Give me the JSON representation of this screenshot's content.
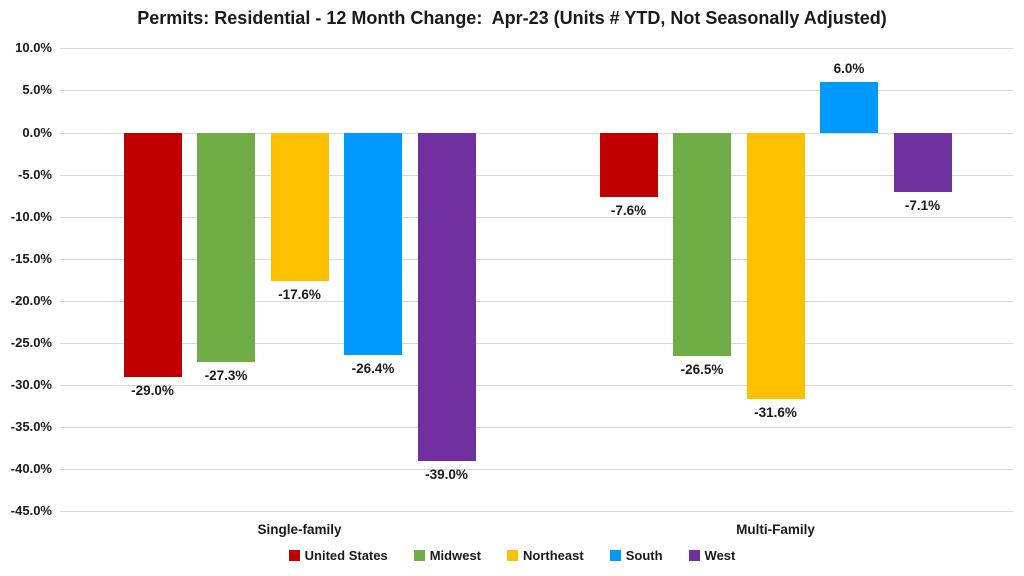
{
  "chart_data": {
    "type": "bar",
    "title": "Permits: Residential - 12 Month Change:  Apr-23 (Units # YTD, Not Seasonally Adjusted)",
    "categories": [
      "Single-family",
      "Multi-Family"
    ],
    "series": [
      {
        "name": "United States",
        "color": "#c00000",
        "values": [
          -29.0,
          -7.6
        ],
        "labels": [
          "-29.0%",
          "-7.6%"
        ]
      },
      {
        "name": "Midwest",
        "color": "#70ad47",
        "values": [
          -27.3,
          -26.5
        ],
        "labels": [
          "-27.3%",
          "-26.5%"
        ]
      },
      {
        "name": "Northeast",
        "color": "#ffc000",
        "values": [
          -17.6,
          -31.6
        ],
        "labels": [
          "-17.6%",
          "-31.6%"
        ]
      },
      {
        "name": "South",
        "color": "#0099ff",
        "values": [
          -26.4,
          6.0
        ],
        "labels": [
          "-26.4%",
          "6.0%"
        ]
      },
      {
        "name": "West",
        "color": "#7030a0",
        "values": [
          -39.0,
          -7.1
        ],
        "labels": [
          "-39.0%",
          "-7.1%"
        ]
      }
    ],
    "y_axis": {
      "min": -45,
      "max": 10,
      "step": 5,
      "tick_labels": [
        "10.0%",
        "5.0%",
        "0.0%",
        "-5.0%",
        "-10.0%",
        "-15.0%",
        "-20.0%",
        "-25.0%",
        "-30.0%",
        "-35.0%",
        "-40.0%",
        "-45.0%"
      ]
    },
    "grid": true,
    "gridline_color": "#d9d9d9",
    "legend_position": "bottom",
    "value_labels": true
  }
}
